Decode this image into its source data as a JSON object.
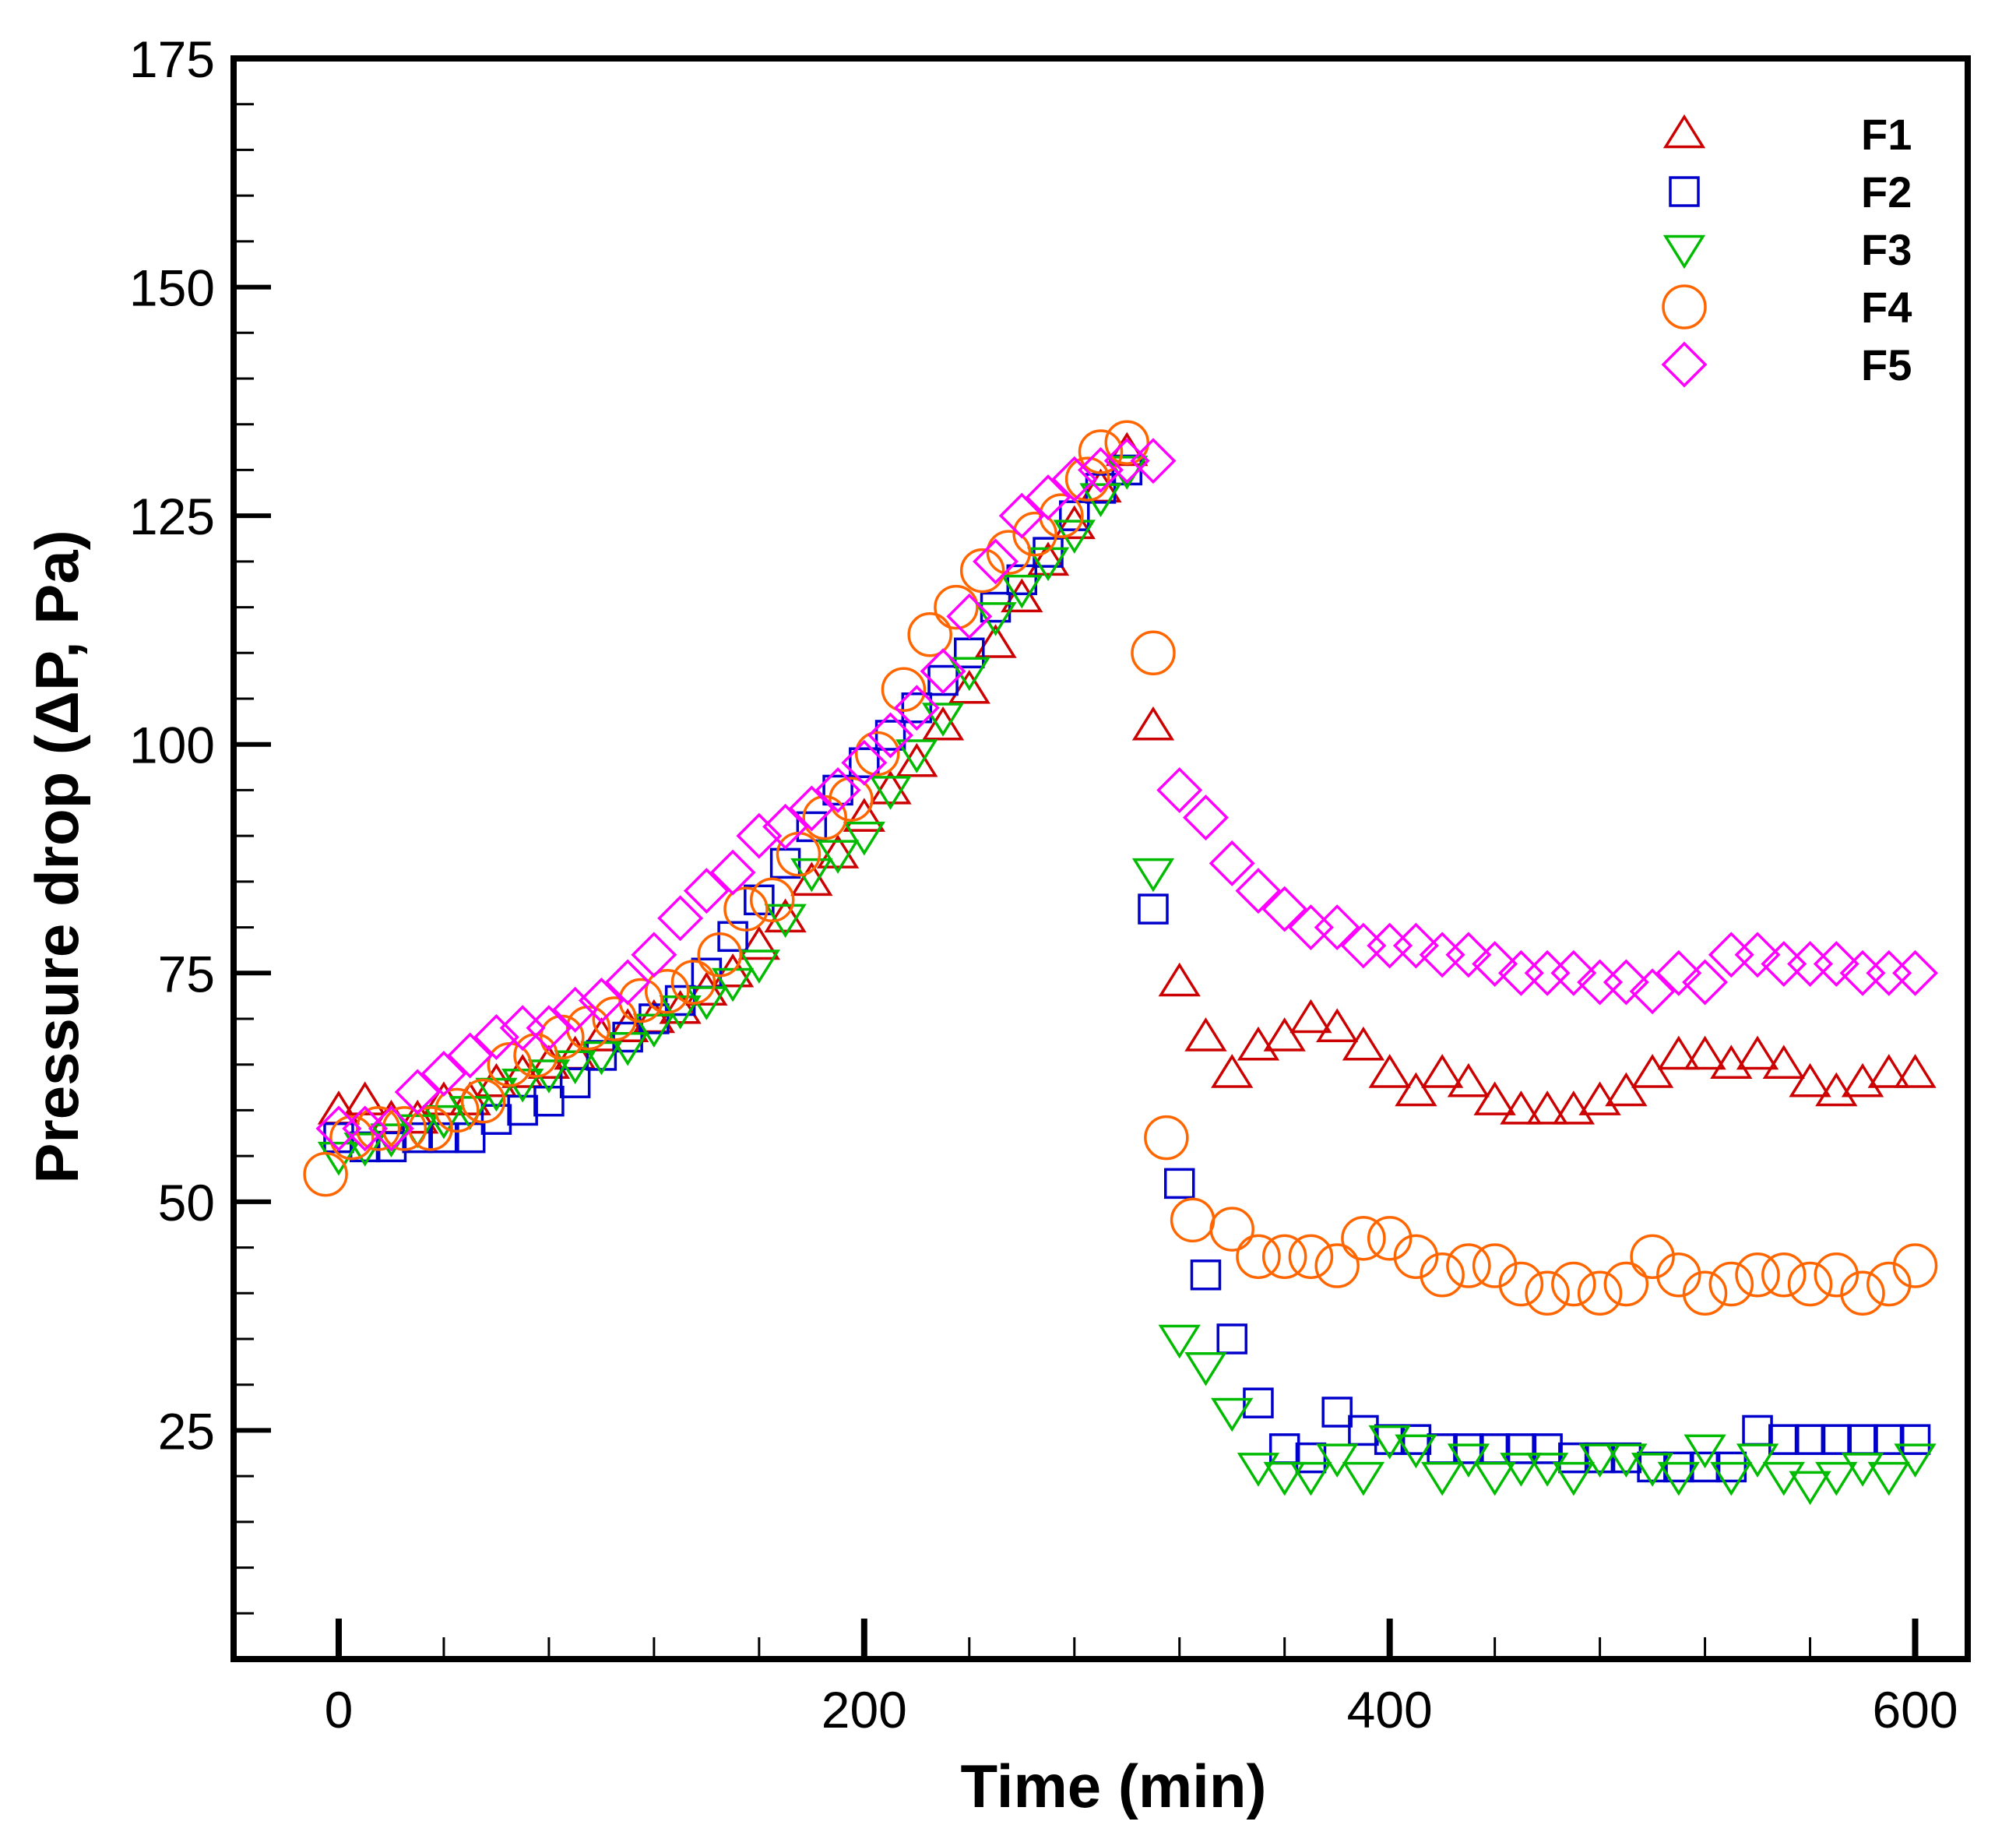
{
  "chart_data": {
    "type": "scatter",
    "title": "",
    "xlabel": "Time (min)",
    "ylabel": "Pressure drop (ΔP, Pa)",
    "xlim": [
      -40,
      620
    ],
    "ylim": [
      0,
      175
    ],
    "xticks": [
      0,
      200,
      400,
      600
    ],
    "xtick_labels": [
      "0",
      "200",
      "400",
      "600"
    ],
    "yticks": [
      25,
      50,
      75,
      100,
      125,
      150,
      175
    ],
    "ytick_labels": [
      "25",
      "50",
      "75",
      "100",
      "125",
      "150",
      "175"
    ],
    "grid": false,
    "legend_position": "top-right",
    "series": [
      {
        "name": "F1",
        "marker": "triangle-up",
        "color": "#cc0000",
        "x": [
          0,
          10,
          20,
          30,
          40,
          50,
          60,
          70,
          80,
          90,
          100,
          110,
          120,
          130,
          140,
          150,
          160,
          170,
          180,
          190,
          200,
          210,
          220,
          230,
          240,
          250,
          260,
          270,
          280,
          290,
          300,
          310,
          320,
          330,
          340,
          350,
          360,
          370,
          380,
          390,
          400,
          410,
          420,
          430,
          440,
          450,
          460,
          470,
          480,
          490,
          500,
          510,
          520,
          530,
          540,
          550,
          560,
          570,
          580,
          590,
          600
        ],
        "y": [
          60,
          61,
          59,
          59,
          61,
          61,
          63,
          64,
          65,
          66,
          68,
          69,
          70,
          71,
          73,
          75,
          78,
          81,
          85,
          88,
          92,
          95,
          98,
          102,
          106,
          111,
          116,
          120,
          124,
          128,
          132,
          102,
          74,
          68,
          64,
          67,
          68,
          70,
          69,
          67,
          64,
          62,
          64,
          63,
          61,
          60,
          60,
          60,
          61,
          62,
          64,
          66,
          66,
          65,
          66,
          65,
          63,
          62,
          63,
          64,
          64
        ]
      },
      {
        "name": "F2",
        "marker": "square",
        "color": "#0000cc",
        "x": [
          0,
          10,
          20,
          30,
          40,
          50,
          60,
          70,
          80,
          90,
          100,
          110,
          120,
          130,
          140,
          150,
          160,
          170,
          180,
          190,
          200,
          210,
          220,
          230,
          240,
          250,
          260,
          270,
          280,
          290,
          300,
          310,
          320,
          330,
          340,
          350,
          360,
          370,
          380,
          390,
          400,
          410,
          420,
          430,
          440,
          450,
          460,
          470,
          480,
          490,
          500,
          510,
          520,
          530,
          540,
          550,
          560,
          570,
          580,
          590,
          600
        ],
        "y": [
          57,
          56,
          56,
          57,
          57,
          57,
          59,
          60,
          61,
          63,
          66,
          68,
          70,
          72,
          75,
          79,
          83,
          87,
          91,
          95,
          98,
          101,
          104,
          107,
          110,
          115,
          118,
          121,
          125,
          128,
          130,
          82,
          52,
          42,
          35,
          28,
          23,
          22,
          27,
          25,
          24,
          24,
          23,
          23,
          23,
          23,
          23,
          22,
          22,
          22,
          21,
          21,
          21,
          21,
          25,
          24,
          24,
          24,
          24,
          24,
          24
        ]
      },
      {
        "name": "F3",
        "marker": "triangle-down",
        "color": "#00bb00",
        "x": [
          0,
          10,
          20,
          30,
          40,
          50,
          60,
          70,
          80,
          90,
          100,
          110,
          120,
          130,
          140,
          150,
          160,
          170,
          180,
          190,
          200,
          210,
          220,
          230,
          240,
          250,
          260,
          270,
          280,
          290,
          300,
          310,
          320,
          330,
          340,
          350,
          360,
          370,
          380,
          390,
          400,
          410,
          420,
          430,
          440,
          450,
          460,
          470,
          480,
          490,
          500,
          510,
          520,
          530,
          540,
          550,
          560,
          570,
          580,
          590,
          600
        ],
        "y": [
          55,
          56,
          57,
          58,
          59,
          60,
          62,
          63,
          64,
          65,
          66,
          67,
          69,
          71,
          72,
          74,
          76,
          81,
          86,
          88,
          90,
          95,
          99,
          103,
          108,
          114,
          117,
          120,
          123,
          127,
          130,
          86,
          35,
          32,
          27,
          21,
          20,
          20,
          22,
          20,
          24,
          23,
          20,
          22,
          20,
          21,
          21,
          20,
          22,
          22,
          21,
          20,
          23,
          20,
          22,
          20,
          19,
          20,
          21,
          20,
          22
        ]
      },
      {
        "name": "F4",
        "marker": "circle",
        "color": "#ff6600",
        "x": [
          -5,
          5,
          15,
          25,
          35,
          45,
          55,
          65,
          75,
          85,
          95,
          105,
          115,
          125,
          135,
          145,
          155,
          165,
          175,
          185,
          195,
          205,
          215,
          225,
          235,
          245,
          255,
          265,
          275,
          285,
          290,
          300,
          310,
          315,
          325,
          340,
          350,
          360,
          370,
          380,
          390,
          400,
          410,
          420,
          430,
          440,
          450,
          460,
          470,
          480,
          490,
          500,
          510,
          520,
          530,
          540,
          550,
          560,
          570,
          580,
          590,
          600
        ],
        "y": [
          53,
          57,
          58,
          58,
          58,
          60,
          61,
          65,
          66,
          68,
          69,
          70,
          72,
          73,
          74,
          77,
          82,
          83,
          88,
          92,
          94,
          99,
          106,
          112,
          115,
          119,
          121,
          123,
          125,
          129,
          132,
          133,
          110,
          57,
          48,
          47,
          44,
          44,
          44,
          43,
          46,
          46,
          44,
          42,
          43,
          43,
          41,
          40,
          41,
          40,
          41,
          44,
          42,
          40,
          41,
          42,
          42,
          41,
          42,
          40,
          41,
          43
        ]
      },
      {
        "name": "F5",
        "marker": "diamond",
        "color": "#ff00ff",
        "x": [
          0,
          10,
          20,
          30,
          40,
          50,
          60,
          70,
          80,
          90,
          100,
          110,
          120,
          130,
          140,
          150,
          160,
          170,
          180,
          190,
          200,
          210,
          220,
          230,
          240,
          250,
          260,
          270,
          280,
          290,
          300,
          310,
          320,
          330,
          340,
          350,
          360,
          370,
          380,
          390,
          400,
          410,
          420,
          430,
          440,
          450,
          460,
          470,
          480,
          490,
          500,
          510,
          520,
          530,
          540,
          550,
          560,
          570,
          580,
          590,
          600
        ],
        "y": [
          58,
          58,
          58,
          62,
          64,
          66,
          68,
          69,
          69,
          71,
          72,
          74,
          77,
          81,
          84,
          86,
          90,
          91,
          93,
          95,
          98,
          101,
          104,
          108,
          114,
          120,
          125,
          127,
          129,
          130,
          131,
          131,
          95,
          92,
          87,
          84,
          82,
          80,
          80,
          78,
          78,
          78,
          77,
          77,
          76,
          75,
          75,
          75,
          74,
          74,
          73,
          75,
          74,
          77,
          77,
          76,
          76,
          76,
          75,
          75,
          75
        ]
      }
    ]
  }
}
